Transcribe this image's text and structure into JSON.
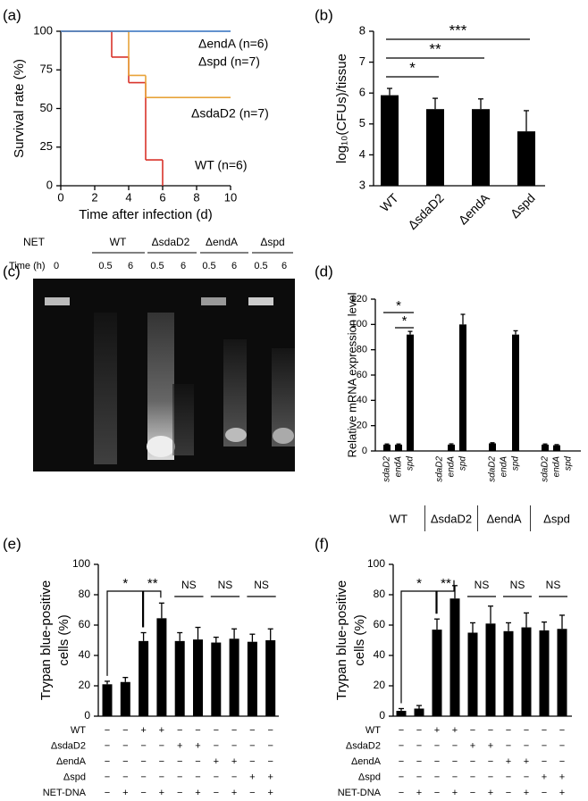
{
  "chart_data": [
    {
      "panel": "(a)",
      "type": "line",
      "step": true,
      "xlabel": "Time after infection (d)",
      "ylabel": "Survival rate (%)",
      "x": [
        0,
        3,
        4,
        5,
        6,
        10
      ],
      "xlim": [
        0,
        10
      ],
      "xticks": [
        0,
        2,
        4,
        6,
        8,
        10
      ],
      "ylim": [
        0,
        100
      ],
      "yticks": [
        0,
        25,
        50,
        75,
        100
      ],
      "series": [
        {
          "name": "ΔendA (n=6)",
          "color": "#4a7fc4",
          "values": [
            100,
            100,
            100,
            100,
            100,
            100
          ]
        },
        {
          "name": "Δspd (n=7)",
          "color": "#5b9bd5",
          "values": [
            100,
            100,
            100,
            100,
            100,
            100
          ]
        },
        {
          "name": "ΔsdaD2 (n=7)",
          "color": "#e8a33a",
          "values": [
            100,
            100,
            71.4,
            57.1,
            57.1,
            57.1
          ]
        },
        {
          "name": "WT (n=6)",
          "color": "#d9342b",
          "values": [
            100,
            83.3,
            66.7,
            16.7,
            0,
            null
          ]
        }
      ]
    },
    {
      "panel": "(b)",
      "type": "bar",
      "ylabel": "log₁₀(CFUs)/tissue",
      "categories": [
        "WT",
        "ΔsdaD2",
        "ΔendA",
        "Δspd"
      ],
      "values": [
        5.93,
        5.48,
        5.48,
        4.76
      ],
      "errors": [
        0.22,
        0.35,
        0.33,
        0.67
      ],
      "color": "#000000",
      "ylim": [
        3,
        8
      ],
      "yticks": [
        3,
        4,
        5,
        6,
        7,
        8
      ],
      "annotations": [
        "*",
        "**",
        "***"
      ]
    },
    {
      "panel": "(d)",
      "type": "grouped_bar",
      "ylabel": "Relative mRNA expression level",
      "categories": [
        "WT",
        "ΔsdaD2",
        "ΔendA",
        "Δspd"
      ],
      "color": "#000000",
      "series": [
        {
          "name": "sdaD2",
          "values": [
            5,
            null,
            6,
            5
          ],
          "errors": [
            0.5,
            null,
            0.5,
            0.5
          ]
        },
        {
          "name": "endA",
          "values": [
            5,
            5,
            null,
            4.5
          ],
          "errors": [
            0.5,
            0.6,
            null,
            0.5
          ]
        },
        {
          "name": "spd",
          "values": [
            92,
            100,
            92,
            null
          ],
          "errors": [
            2.5,
            8,
            3,
            null
          ]
        }
      ],
      "ylim": [
        0,
        120
      ],
      "yticks": [
        0,
        20,
        40,
        60,
        80,
        100,
        120
      ],
      "annotations": [
        "*",
        "*"
      ]
    },
    {
      "panel": "(e)",
      "type": "bar",
      "ylabel": [
        "Trypan blue-positive",
        "cells (%)"
      ],
      "values": [
        21,
        22.5,
        49.5,
        64.5,
        49.5,
        50.5,
        48.5,
        51,
        49,
        50
      ],
      "errors": [
        2,
        3,
        5.5,
        10,
        5.5,
        8,
        3.5,
        6.5,
        5,
        7.5
      ],
      "color": "#000000",
      "ylim": [
        0,
        100
      ],
      "yticks": [
        0,
        20,
        40,
        60,
        80,
        100
      ],
      "annotations": [
        "*",
        "**",
        "NS",
        "NS",
        "NS"
      ],
      "conditions": [
        {
          "label": "WT",
          "signs": [
            "−",
            "−",
            "+",
            "+",
            "−",
            "−",
            "−",
            "−",
            "−",
            "−"
          ]
        },
        {
          "label": "ΔsdaD2",
          "signs": [
            "−",
            "−",
            "−",
            "−",
            "+",
            "+",
            "−",
            "−",
            "−",
            "−"
          ]
        },
        {
          "label": "ΔendA",
          "signs": [
            "−",
            "−",
            "−",
            "−",
            "−",
            "−",
            "+",
            "+",
            "−",
            "−"
          ]
        },
        {
          "label": "Δspd",
          "signs": [
            "−",
            "−",
            "−",
            "−",
            "−",
            "−",
            "−",
            "−",
            "+",
            "+"
          ]
        },
        {
          "label": "NET-DNA",
          "signs": [
            "−",
            "+",
            "−",
            "+",
            "−",
            "+",
            "−",
            "+",
            "−",
            "+"
          ]
        }
      ]
    },
    {
      "panel": "(f)",
      "type": "bar",
      "ylabel": [
        "Trypan blue-positive",
        "cells (%)"
      ],
      "values": [
        3.5,
        5,
        57,
        77.5,
        55,
        61,
        56,
        58.5,
        56.5,
        57.5
      ],
      "errors": [
        1.5,
        2,
        7,
        8.5,
        6.5,
        11.5,
        5.5,
        9.5,
        5.5,
        9
      ],
      "color": "#000000",
      "ylim": [
        0,
        100
      ],
      "yticks": [
        0,
        20,
        40,
        60,
        80,
        100
      ],
      "annotations": [
        "*",
        "**",
        "NS",
        "NS",
        "NS"
      ],
      "conditions": [
        {
          "label": "WT",
          "signs": [
            "−",
            "−",
            "+",
            "+",
            "−",
            "−",
            "−",
            "−",
            "−",
            "−"
          ]
        },
        {
          "label": "ΔsdaD2",
          "signs": [
            "−",
            "−",
            "−",
            "−",
            "+",
            "+",
            "−",
            "−",
            "−",
            "−"
          ]
        },
        {
          "label": "ΔendA",
          "signs": [
            "−",
            "−",
            "−",
            "−",
            "−",
            "−",
            "+",
            "+",
            "−",
            "−"
          ]
        },
        {
          "label": "Δspd",
          "signs": [
            "−",
            "−",
            "−",
            "−",
            "−",
            "−",
            "−",
            "−",
            "+",
            "+"
          ]
        },
        {
          "label": "NET-DNA",
          "signs": [
            "−",
            "+",
            "−",
            "+",
            "−",
            "+",
            "−",
            "+",
            "−",
            "+"
          ]
        }
      ]
    }
  ],
  "gel": {
    "panel": "(c)",
    "lane_groups": [
      "NET",
      "WT",
      "ΔsdaD2",
      "ΔendA",
      "Δspd"
    ],
    "time_label": "Time (h)",
    "times": [
      0,
      0.5,
      6,
      0.5,
      6,
      0.5,
      6,
      0.5,
      6
    ]
  }
}
